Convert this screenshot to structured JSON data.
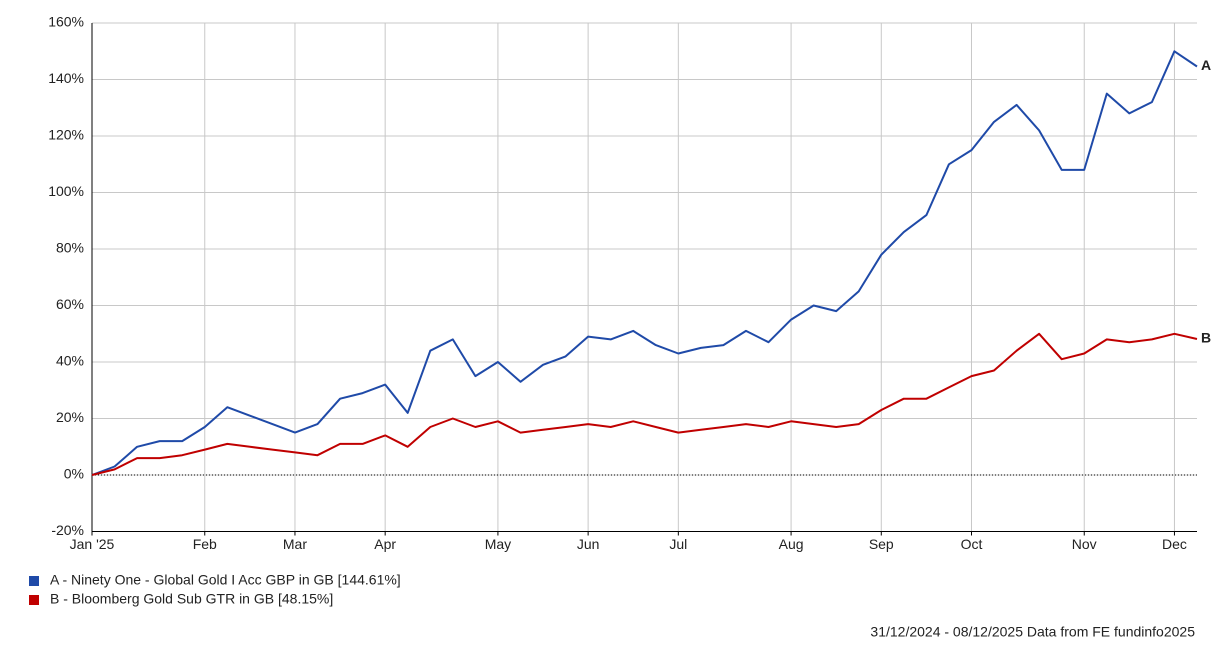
{
  "chart_data": {
    "type": "line",
    "categories": [
      "Jan '25",
      null,
      null,
      null,
      null,
      "Feb",
      null,
      null,
      null,
      "Mar",
      null,
      null,
      null,
      "Apr",
      null,
      null,
      null,
      null,
      "May",
      null,
      null,
      null,
      "Jun",
      null,
      null,
      null,
      "Jul",
      null,
      null,
      null,
      null,
      "Aug",
      null,
      null,
      null,
      "Sep",
      null,
      null,
      null,
      "Oct",
      null,
      null,
      null,
      null,
      "Nov",
      null,
      null,
      null,
      "Dec",
      null
    ],
    "series": [
      {
        "name": "A - Ninety One - Global Gold I Acc GBP in GB [144.61%]",
        "end_label": "A",
        "color": "#1f4aa8",
        "values": [
          0,
          3,
          10,
          12,
          12,
          17,
          24,
          21,
          18,
          15,
          18,
          27,
          29,
          32,
          22,
          44,
          48,
          35,
          40,
          33,
          39,
          42,
          49,
          48,
          51,
          46,
          43,
          45,
          46,
          51,
          47,
          55,
          60,
          58,
          65,
          78,
          86,
          92,
          110,
          115,
          125,
          131,
          122,
          108,
          108,
          135,
          128,
          132,
          150,
          144.61
        ]
      },
      {
        "name": "B - Bloomberg Gold Sub GTR in GB [48.15%]",
        "end_label": "B",
        "color": "#c00000",
        "values": [
          0,
          2,
          6,
          6,
          7,
          9,
          11,
          10,
          9,
          8,
          7,
          11,
          11,
          14,
          10,
          17,
          20,
          17,
          19,
          15,
          16,
          17,
          18,
          17,
          19,
          17,
          15,
          16,
          17,
          18,
          17,
          19,
          18,
          17,
          18,
          23,
          27,
          27,
          31,
          35,
          37,
          44,
          50,
          41,
          43,
          48,
          47,
          48,
          50,
          48.15
        ]
      }
    ],
    "ylim": [
      -20,
      160
    ],
    "yticks": [
      {
        "value": -20,
        "label": "-20%"
      },
      {
        "value": 0,
        "label": "0%"
      },
      {
        "value": 20,
        "label": "20%"
      },
      {
        "value": 40,
        "label": "40%"
      },
      {
        "value": 60,
        "label": "60%"
      },
      {
        "value": 80,
        "label": "80%"
      },
      {
        "value": 100,
        "label": "100%"
      },
      {
        "value": 120,
        "label": "120%"
      },
      {
        "value": 140,
        "label": "140%"
      },
      {
        "value": 160,
        "label": "160%"
      }
    ],
    "grid": true,
    "footer": "31/12/2024 - 08/12/2025 Data from FE fundinfo2025"
  }
}
